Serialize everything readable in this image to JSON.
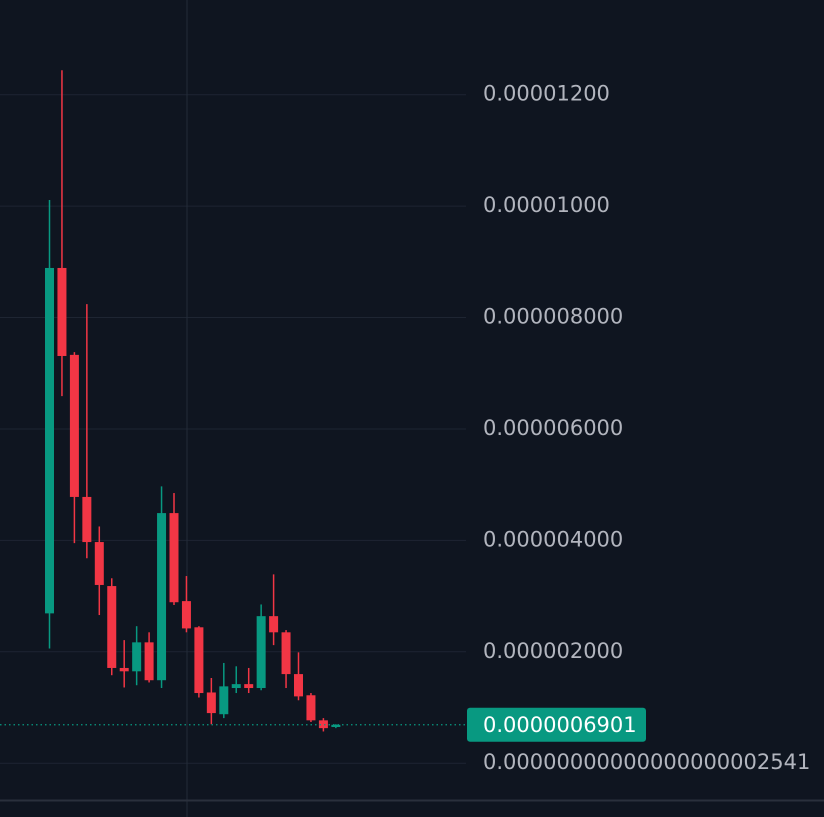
{
  "chart_data": {
    "type": "candlestick",
    "up_color": "#089981",
    "down_color": "#f23645",
    "grid": true,
    "ylim": [
      -6.6e-07,
      1.37e-05
    ],
    "yticks": [
      {
        "value": 2.541e-20,
        "label": "0.00000000000000000002541"
      },
      {
        "value": 2e-06,
        "label": "0.000002000"
      },
      {
        "value": 4e-06,
        "label": "0.000004000"
      },
      {
        "value": 6e-06,
        "label": "0.000006000"
      },
      {
        "value": 8e-06,
        "label": "0.000008000"
      },
      {
        "value": 1e-05,
        "label": "0.00001000"
      },
      {
        "value": 1.2e-05,
        "label": "0.00001200"
      }
    ],
    "last_price": {
      "value": 6.901e-07,
      "label": "0.0000006901"
    },
    "open": [
      2.69e-06,
      8.89e-06,
      7.33e-06,
      4.78e-06,
      3.97e-06,
      3.18e-06,
      1.71e-06,
      1.65e-06,
      2.17e-06,
      1.49e-06,
      4.49e-06,
      2.91e-06,
      2.44e-06,
      1.27e-06,
      8.8e-07,
      1.35e-06,
      1.42e-06,
      1.35e-06,
      2.64e-06,
      2.35e-06,
      1.6e-06,
      1.22e-06,
      7.7e-07,
      6.5e-07
    ],
    "high": [
      1.011e-05,
      1.244e-05,
      7.38e-06,
      8.24e-06,
      4.25e-06,
      3.32e-06,
      2.21e-06,
      2.46e-06,
      2.35e-06,
      4.97e-06,
      4.85e-06,
      3.36e-06,
      2.46e-06,
      1.53e-06,
      1.8e-06,
      1.74e-06,
      1.71e-06,
      2.85e-06,
      3.39e-06,
      2.39e-06,
      1.99e-06,
      1.26e-06,
      8.1e-07,
      7e-07
    ],
    "low": [
      2.06e-06,
      6.59e-06,
      3.95e-06,
      3.68e-06,
      2.66e-06,
      1.58e-06,
      1.36e-06,
      1.4e-06,
      1.45e-06,
      1.35e-06,
      2.84e-06,
      2.35e-06,
      1.18e-06,
      7e-07,
      8.1e-07,
      1.26e-06,
      1.26e-06,
      1.31e-06,
      2.12e-06,
      1.35e-06,
      1.13e-06,
      7.4e-07,
      5.7e-07,
      6.3e-07
    ],
    "close": [
      8.89e-06,
      7.31e-06,
      4.78e-06,
      3.97e-06,
      3.2e-06,
      1.71e-06,
      1.65e-06,
      2.17e-06,
      1.49e-06,
      4.49e-06,
      2.89e-06,
      2.42e-06,
      1.26e-06,
      9e-07,
      1.38e-06,
      1.42e-06,
      1.35e-06,
      2.64e-06,
      2.35e-06,
      1.6e-06,
      1.2e-06,
      7.7e-07,
      6.3e-07,
      6.9e-07
    ]
  }
}
